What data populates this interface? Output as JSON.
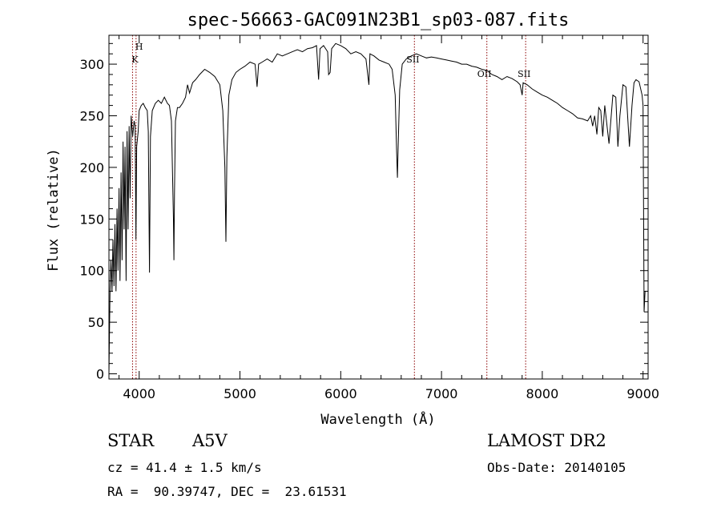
{
  "chart_data": {
    "type": "line",
    "title": "spec-56663-GAC091N23B1_sp03-087.fits",
    "xlabel": "Wavelength (Å)",
    "ylabel": "Flux (relative)",
    "xlim": [
      3700,
      9050
    ],
    "ylim": [
      -5,
      328
    ],
    "xticks": [
      4000,
      5000,
      6000,
      7000,
      8000,
      9000
    ],
    "yticks": [
      0,
      50,
      100,
      150,
      200,
      250,
      300
    ],
    "grid": false,
    "line_color": "#000000",
    "marker_color": "#8b0000",
    "series": [
      {
        "points": [
          [
            3700,
            0
          ],
          [
            3710,
            80
          ],
          [
            3720,
            110
          ],
          [
            3730,
            80
          ],
          [
            3740,
            130
          ],
          [
            3750,
            85
          ],
          [
            3760,
            145
          ],
          [
            3770,
            80
          ],
          [
            3780,
            160
          ],
          [
            3790,
            100
          ],
          [
            3800,
            180
          ],
          [
            3810,
            90
          ],
          [
            3820,
            195
          ],
          [
            3830,
            110
          ],
          [
            3840,
            225
          ],
          [
            3850,
            140
          ],
          [
            3860,
            220
          ],
          [
            3870,
            90
          ],
          [
            3880,
            235
          ],
          [
            3890,
            140
          ],
          [
            3900,
            240
          ],
          [
            3910,
            170
          ],
          [
            3920,
            250
          ],
          [
            3935,
            230
          ],
          [
            3950,
            245
          ],
          [
            3960,
            240
          ],
          [
            3968,
            130
          ],
          [
            3975,
            220
          ],
          [
            3990,
            235
          ],
          [
            4000,
            255
          ],
          [
            4020,
            260
          ],
          [
            4040,
            262
          ],
          [
            4060,
            258
          ],
          [
            4080,
            255
          ],
          [
            4090,
            235
          ],
          [
            4102,
            98
          ],
          [
            4112,
            230
          ],
          [
            4130,
            255
          ],
          [
            4160,
            262
          ],
          [
            4190,
            265
          ],
          [
            4220,
            262
          ],
          [
            4250,
            268
          ],
          [
            4280,
            262
          ],
          [
            4300,
            260
          ],
          [
            4320,
            245
          ],
          [
            4340,
            150
          ],
          [
            4345,
            110
          ],
          [
            4350,
            175
          ],
          [
            4360,
            245
          ],
          [
            4380,
            258
          ],
          [
            4400,
            258
          ],
          [
            4430,
            262
          ],
          [
            4460,
            268
          ],
          [
            4480,
            280
          ],
          [
            4500,
            272
          ],
          [
            4530,
            282
          ],
          [
            4560,
            285
          ],
          [
            4600,
            290
          ],
          [
            4650,
            295
          ],
          [
            4700,
            292
          ],
          [
            4750,
            288
          ],
          [
            4800,
            280
          ],
          [
            4830,
            255
          ],
          [
            4850,
            200
          ],
          [
            4861,
            128
          ],
          [
            4870,
            210
          ],
          [
            4890,
            270
          ],
          [
            4920,
            285
          ],
          [
            4960,
            292
          ],
          [
            5000,
            295
          ],
          [
            5050,
            298
          ],
          [
            5100,
            302
          ],
          [
            5150,
            300
          ],
          [
            5170,
            278
          ],
          [
            5185,
            300
          ],
          [
            5220,
            302
          ],
          [
            5270,
            305
          ],
          [
            5320,
            302
          ],
          [
            5370,
            310
          ],
          [
            5420,
            308
          ],
          [
            5470,
            310
          ],
          [
            5520,
            312
          ],
          [
            5570,
            314
          ],
          [
            5620,
            312
          ],
          [
            5670,
            315
          ],
          [
            5720,
            316
          ],
          [
            5760,
            318
          ],
          [
            5780,
            285
          ],
          [
            5795,
            315
          ],
          [
            5830,
            318
          ],
          [
            5870,
            312
          ],
          [
            5880,
            290
          ],
          [
            5895,
            292
          ],
          [
            5910,
            315
          ],
          [
            5950,
            320
          ],
          [
            6000,
            318
          ],
          [
            6050,
            315
          ],
          [
            6100,
            310
          ],
          [
            6150,
            312
          ],
          [
            6200,
            310
          ],
          [
            6250,
            305
          ],
          [
            6280,
            280
          ],
          [
            6290,
            310
          ],
          [
            6330,
            308
          ],
          [
            6380,
            304
          ],
          [
            6430,
            302
          ],
          [
            6480,
            300
          ],
          [
            6510,
            295
          ],
          [
            6540,
            270
          ],
          [
            6555,
            215
          ],
          [
            6563,
            190
          ],
          [
            6570,
            220
          ],
          [
            6585,
            275
          ],
          [
            6610,
            300
          ],
          [
            6650,
            305
          ],
          [
            6700,
            308
          ],
          [
            6750,
            310
          ],
          [
            6800,
            308
          ],
          [
            6850,
            306
          ],
          [
            6900,
            307
          ],
          [
            6950,
            306
          ],
          [
            7000,
            305
          ],
          [
            7050,
            304
          ],
          [
            7100,
            303
          ],
          [
            7150,
            302
          ],
          [
            7200,
            300
          ],
          [
            7250,
            300
          ],
          [
            7300,
            298
          ],
          [
            7350,
            297
          ],
          [
            7400,
            295
          ],
          [
            7450,
            294
          ],
          [
            7500,
            290
          ],
          [
            7550,
            288
          ],
          [
            7600,
            285
          ],
          [
            7650,
            288
          ],
          [
            7700,
            286
          ],
          [
            7750,
            283
          ],
          [
            7780,
            280
          ],
          [
            7800,
            270
          ],
          [
            7810,
            282
          ],
          [
            7850,
            280
          ],
          [
            7900,
            276
          ],
          [
            7950,
            273
          ],
          [
            8000,
            270
          ],
          [
            8050,
            268
          ],
          [
            8100,
            265
          ],
          [
            8150,
            262
          ],
          [
            8200,
            258
          ],
          [
            8250,
            255
          ],
          [
            8300,
            252
          ],
          [
            8350,
            248
          ],
          [
            8400,
            247
          ],
          [
            8450,
            245
          ],
          [
            8480,
            250
          ],
          [
            8500,
            240
          ],
          [
            8520,
            250
          ],
          [
            8542,
            232
          ],
          [
            8560,
            258
          ],
          [
            8580,
            255
          ],
          [
            8600,
            230
          ],
          [
            8620,
            260
          ],
          [
            8662,
            223
          ],
          [
            8700,
            270
          ],
          [
            8730,
            268
          ],
          [
            8750,
            220
          ],
          [
            8770,
            250
          ],
          [
            8800,
            280
          ],
          [
            8830,
            278
          ],
          [
            8865,
            220
          ],
          [
            8890,
            260
          ],
          [
            8910,
            282
          ],
          [
            8930,
            285
          ],
          [
            8960,
            283
          ],
          [
            8990,
            270
          ],
          [
            9000,
            260
          ],
          [
            9010,
            60
          ],
          [
            9020,
            80
          ]
        ]
      }
    ],
    "lines": [
      {
        "x": 3934,
        "label": "K"
      },
      {
        "x": 3969,
        "label": "H"
      },
      {
        "x": 6731,
        "label": "SII"
      },
      {
        "x": 7450,
        "label": "OII"
      },
      {
        "x": 7835,
        "label": "SII"
      }
    ]
  },
  "info": {
    "object_class": "STAR",
    "subclass": "A5V",
    "survey": "LAMOST DR2",
    "cz": "cz = 41.4 ± 1.5 km/s",
    "obs_date": "Obs-Date: 20140105",
    "coords": "RA =  90.39747, DEC =  23.61531"
  }
}
